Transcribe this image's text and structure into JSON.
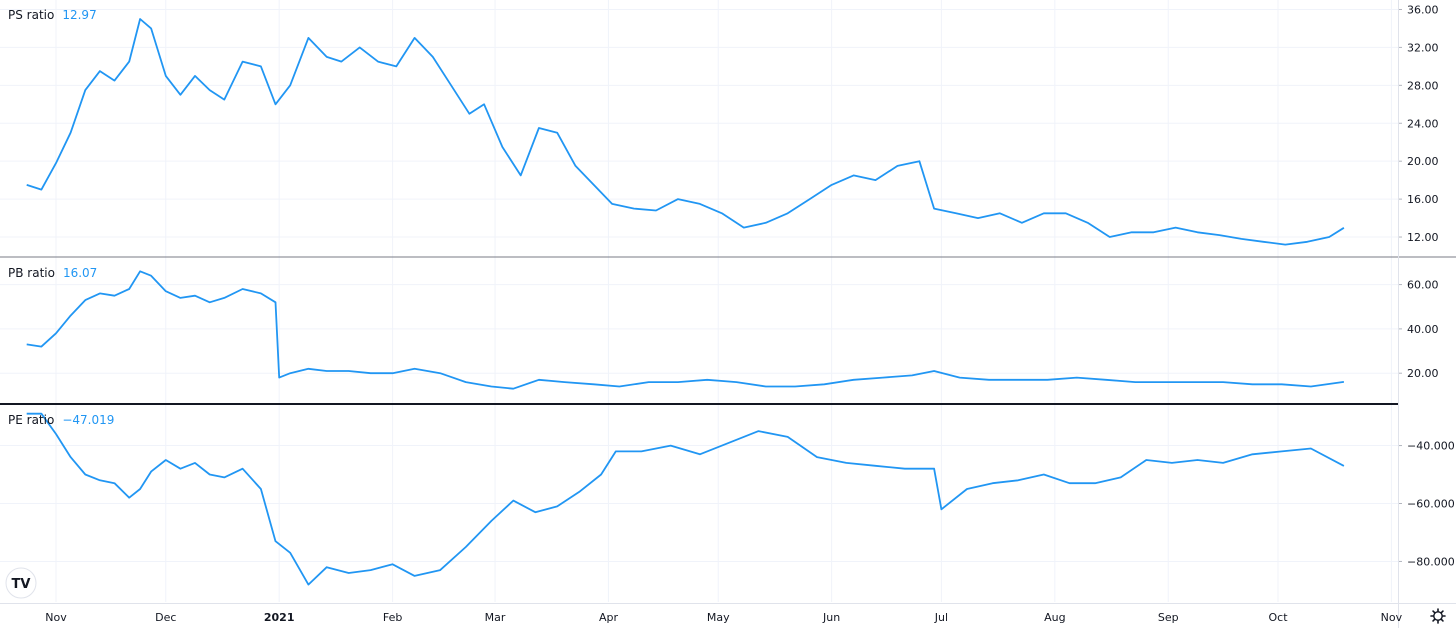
{
  "theme": {
    "line_color": "#2196F3",
    "grid_color": "#F0F3FA",
    "separator_color": "#131722",
    "axis_border": "#E0E3EB",
    "text_color": "#131722"
  },
  "x_axis": {
    "ticks": [
      {
        "label": "Nov",
        "date": "2020-11-01",
        "bold": false
      },
      {
        "label": "Dec",
        "date": "2020-12-01",
        "bold": false
      },
      {
        "label": "2021",
        "date": "2021-01-01",
        "bold": true
      },
      {
        "label": "Feb",
        "date": "2021-02-01",
        "bold": false
      },
      {
        "label": "Mar",
        "date": "2021-03-01",
        "bold": false
      },
      {
        "label": "Apr",
        "date": "2021-04-01",
        "bold": false
      },
      {
        "label": "May",
        "date": "2021-05-01",
        "bold": false
      },
      {
        "label": "Jun",
        "date": "2021-06-01",
        "bold": false
      },
      {
        "label": "Jul",
        "date": "2021-07-01",
        "bold": false
      },
      {
        "label": "Aug",
        "date": "2021-08-01",
        "bold": false
      },
      {
        "label": "Sep",
        "date": "2021-09-01",
        "bold": false
      },
      {
        "label": "Oct",
        "date": "2021-10-01",
        "bold": false
      },
      {
        "label": "Nov",
        "date": "2021-11-01",
        "bold": false
      }
    ]
  },
  "logo_text": "TV",
  "settings_icon": "gear-icon",
  "chart_data": [
    {
      "type": "line",
      "title": "PS ratio",
      "last_value": "12.97",
      "ylim": [
        10,
        37
      ],
      "yticks": [
        {
          "v": 36,
          "label": "36.00"
        },
        {
          "v": 32,
          "label": "32.00"
        },
        {
          "v": 28,
          "label": "28.00"
        },
        {
          "v": 24,
          "label": "24.00"
        },
        {
          "v": 20,
          "label": "20.00"
        },
        {
          "v": 16,
          "label": "16.00"
        },
        {
          "v": 12,
          "label": "12.00"
        }
      ],
      "x": [
        "2020-10-24",
        "2020-10-28",
        "2020-11-01",
        "2020-11-05",
        "2020-11-09",
        "2020-11-13",
        "2020-11-17",
        "2020-11-21",
        "2020-11-24",
        "2020-11-27",
        "2020-12-01",
        "2020-12-05",
        "2020-12-09",
        "2020-12-13",
        "2020-12-17",
        "2020-12-22",
        "2020-12-27",
        "2020-12-31",
        "2021-01-04",
        "2021-01-09",
        "2021-01-14",
        "2021-01-18",
        "2021-01-23",
        "2021-01-28",
        "2021-02-02",
        "2021-02-07",
        "2021-02-12",
        "2021-02-17",
        "2021-02-22",
        "2021-02-26",
        "2021-03-03",
        "2021-03-08",
        "2021-03-13",
        "2021-03-18",
        "2021-03-23",
        "2021-03-28",
        "2021-04-02",
        "2021-04-08",
        "2021-04-14",
        "2021-04-20",
        "2021-04-26",
        "2021-05-02",
        "2021-05-08",
        "2021-05-14",
        "2021-05-20",
        "2021-05-26",
        "2021-06-01",
        "2021-06-07",
        "2021-06-13",
        "2021-06-19",
        "2021-06-25",
        "2021-06-29",
        "2021-07-05",
        "2021-07-11",
        "2021-07-17",
        "2021-07-23",
        "2021-07-29",
        "2021-08-04",
        "2021-08-10",
        "2021-08-16",
        "2021-08-22",
        "2021-08-28",
        "2021-09-03",
        "2021-09-09",
        "2021-09-15",
        "2021-09-21",
        "2021-09-27",
        "2021-10-03",
        "2021-10-09",
        "2021-10-15",
        "2021-10-19"
      ],
      "series": [
        {
          "values": [
            17.5,
            17.0,
            19.8,
            23.0,
            27.5,
            29.5,
            28.5,
            30.5,
            35.0,
            34.0,
            29.0,
            27.0,
            29.0,
            27.5,
            26.5,
            30.5,
            30.0,
            26.0,
            28.0,
            33.0,
            31.0,
            30.5,
            32.0,
            30.5,
            30.0,
            33.0,
            31.0,
            28.0,
            25.0,
            26.0,
            21.5,
            18.5,
            23.5,
            23.0,
            19.5,
            17.5,
            15.5,
            15.0,
            14.8,
            16.0,
            15.5,
            14.5,
            13.0,
            13.5,
            14.5,
            16.0,
            17.5,
            18.5,
            18.0,
            19.5,
            20.0,
            15.0,
            14.5,
            14.0,
            14.5,
            13.5,
            14.5,
            14.5,
            13.5,
            12.0,
            12.5,
            12.5,
            13.0,
            12.5,
            12.2,
            11.8,
            11.5,
            11.2,
            11.5,
            12.0,
            12.97
          ]
        }
      ]
    },
    {
      "type": "line",
      "title": "PB ratio",
      "last_value": "16.07",
      "ylim": [
        7,
        72
      ],
      "yticks": [
        {
          "v": 60,
          "label": "60.00"
        },
        {
          "v": 40,
          "label": "40.00"
        },
        {
          "v": 20,
          "label": "20.00"
        }
      ],
      "x": [
        "2020-10-24",
        "2020-10-28",
        "2020-11-01",
        "2020-11-05",
        "2020-11-09",
        "2020-11-13",
        "2020-11-17",
        "2020-11-21",
        "2020-11-24",
        "2020-11-27",
        "2020-12-01",
        "2020-12-05",
        "2020-12-09",
        "2020-12-13",
        "2020-12-17",
        "2020-12-22",
        "2020-12-27",
        "2020-12-31",
        "2021-01-01",
        "2021-01-04",
        "2021-01-09",
        "2021-01-14",
        "2021-01-20",
        "2021-01-26",
        "2021-02-01",
        "2021-02-07",
        "2021-02-14",
        "2021-02-21",
        "2021-02-28",
        "2021-03-06",
        "2021-03-13",
        "2021-03-20",
        "2021-03-28",
        "2021-04-04",
        "2021-04-12",
        "2021-04-20",
        "2021-04-28",
        "2021-05-06",
        "2021-05-14",
        "2021-05-22",
        "2021-05-30",
        "2021-06-07",
        "2021-06-15",
        "2021-06-23",
        "2021-06-29",
        "2021-07-06",
        "2021-07-14",
        "2021-07-22",
        "2021-07-30",
        "2021-08-07",
        "2021-08-15",
        "2021-08-23",
        "2021-08-31",
        "2021-09-08",
        "2021-09-16",
        "2021-09-24",
        "2021-10-02",
        "2021-10-10",
        "2021-10-19"
      ],
      "series": [
        {
          "values": [
            33,
            32,
            38,
            46,
            53,
            56,
            55,
            58,
            66,
            64,
            57,
            54,
            55,
            52,
            54,
            58,
            56,
            52,
            18,
            20,
            22,
            21,
            21,
            20,
            20,
            22,
            20,
            16,
            14,
            13,
            17,
            16,
            15,
            14,
            16,
            16,
            17,
            16,
            14,
            14,
            15,
            17,
            18,
            19,
            21,
            18,
            17,
            17,
            17,
            18,
            17,
            16,
            16,
            16,
            16,
            15,
            15,
            14,
            16.07
          ]
        }
      ]
    },
    {
      "type": "line",
      "title": "PE ratio",
      "last_value": "−47.019",
      "ylim": [
        -94,
        -26
      ],
      "yticks": [
        {
          "v": -40,
          "label": "−40.000"
        },
        {
          "v": -60,
          "label": "−60.000"
        },
        {
          "v": -80,
          "label": "−80.000"
        }
      ],
      "x": [
        "2020-10-24",
        "2020-10-28",
        "2020-11-01",
        "2020-11-05",
        "2020-11-09",
        "2020-11-13",
        "2020-11-17",
        "2020-11-21",
        "2020-11-24",
        "2020-11-27",
        "2020-12-01",
        "2020-12-05",
        "2020-12-09",
        "2020-12-13",
        "2020-12-17",
        "2020-12-22",
        "2020-12-27",
        "2020-12-31",
        "2021-01-04",
        "2021-01-09",
        "2021-01-14",
        "2021-01-20",
        "2021-01-26",
        "2021-02-01",
        "2021-02-07",
        "2021-02-14",
        "2021-02-21",
        "2021-02-28",
        "2021-03-06",
        "2021-03-12",
        "2021-03-18",
        "2021-03-24",
        "2021-03-30",
        "2021-04-03",
        "2021-04-10",
        "2021-04-18",
        "2021-04-26",
        "2021-05-04",
        "2021-05-12",
        "2021-05-20",
        "2021-05-28",
        "2021-06-05",
        "2021-06-13",
        "2021-06-21",
        "2021-06-29",
        "2021-07-01",
        "2021-07-08",
        "2021-07-15",
        "2021-07-22",
        "2021-07-29",
        "2021-08-05",
        "2021-08-12",
        "2021-08-19",
        "2021-08-26",
        "2021-09-02",
        "2021-09-09",
        "2021-09-16",
        "2021-09-24",
        "2021-10-02",
        "2021-10-10",
        "2021-10-19"
      ],
      "series": [
        {
          "values": [
            -29,
            -29,
            -36,
            -44,
            -50,
            -52,
            -53,
            -58,
            -55,
            -49,
            -45,
            -48,
            -46,
            -50,
            -51,
            -48,
            -55,
            -73,
            -77,
            -88,
            -82,
            -84,
            -83,
            -81,
            -85,
            -83,
            -75,
            -66,
            -59,
            -63,
            -61,
            -56,
            -50,
            -42,
            -42,
            -40,
            -43,
            -39,
            -35,
            -37,
            -44,
            -46,
            -47,
            -48,
            -48,
            -62,
            -55,
            -53,
            -52,
            -50,
            -53,
            -53,
            -51,
            -45,
            -46,
            -45,
            -46,
            -43,
            -42,
            -41,
            -47.019
          ]
        }
      ]
    }
  ]
}
